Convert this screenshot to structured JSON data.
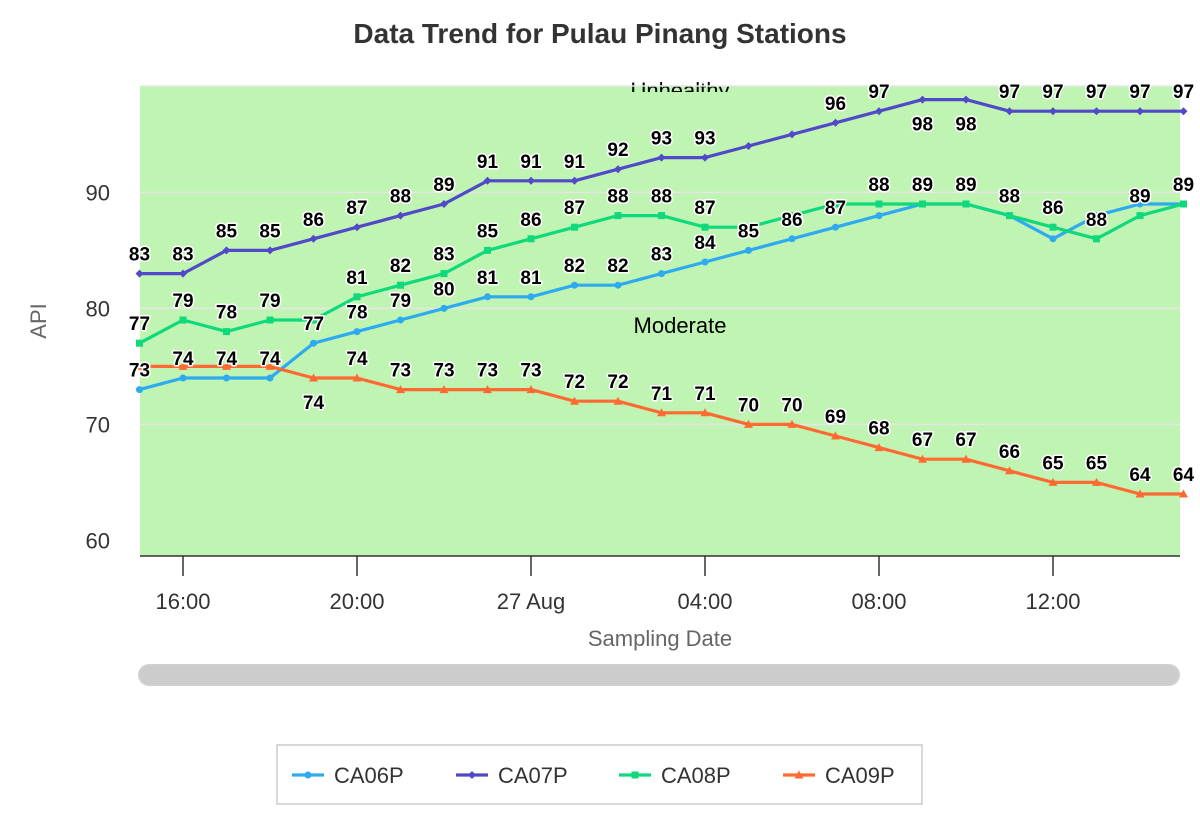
{
  "chart_data": {
    "type": "line",
    "title": "Data Trend for Pulau Pinang Stations",
    "xlabel": "Sampling Date",
    "ylabel": "API",
    "x_tick_labels": [
      "16:00",
      "20:00",
      "27 Aug",
      "04:00",
      "08:00",
      "12:00"
    ],
    "y_ticks": [
      60,
      70,
      80,
      90
    ],
    "ylim": [
      58.9,
      99.2
    ],
    "bands": [
      {
        "label": "Unhealthy",
        "color": "#bff4b3"
      },
      {
        "label": "Moderate",
        "color": "#bff4b3"
      }
    ],
    "x_hours": [
      15,
      16,
      17,
      18,
      19,
      20,
      21,
      22,
      23,
      24,
      25,
      26,
      27,
      28,
      29,
      30,
      31,
      32,
      33,
      34,
      35,
      36,
      37,
      38,
      39
    ],
    "series": [
      {
        "name": "CA06P",
        "color": "#2eaaf0",
        "marker": "circle",
        "values": [
          73,
          74,
          74,
          74,
          77,
          78,
          79,
          80,
          81,
          81,
          82,
          82,
          83,
          84,
          85,
          86,
          87,
          88,
          89,
          89,
          88,
          86,
          88,
          89,
          89
        ]
      },
      {
        "name": "CA07P",
        "color": "#5149c7",
        "marker": "diamond",
        "values": [
          83,
          83,
          85,
          85,
          86,
          87,
          88,
          89,
          91,
          91,
          91,
          92,
          93,
          93,
          94,
          95,
          96,
          97,
          98,
          98,
          97,
          97,
          97,
          97,
          97
        ]
      },
      {
        "name": "CA08P",
        "color": "#0fd97a",
        "marker": "square",
        "values": [
          77,
          79,
          78,
          79,
          79,
          81,
          82,
          83,
          85,
          86,
          87,
          88,
          88,
          87,
          87,
          88,
          89,
          89,
          89,
          89,
          88,
          87,
          86,
          88,
          89
        ]
      },
      {
        "name": "CA09P",
        "color": "#ff6a33",
        "marker": "triangle",
        "values": [
          75,
          75,
          75,
          75,
          74,
          74,
          73,
          73,
          73,
          73,
          72,
          72,
          71,
          71,
          70,
          70,
          69,
          68,
          67,
          67,
          66,
          65,
          65,
          64,
          64
        ]
      }
    ],
    "data_labels": [
      {
        "series": "CA07P",
        "text": "83",
        "i": 0,
        "pos": "above"
      },
      {
        "series": "CA07P",
        "text": "83",
        "i": 1,
        "pos": "above"
      },
      {
        "series": "CA07P",
        "text": "85",
        "i": 2,
        "pos": "above"
      },
      {
        "series": "CA07P",
        "text": "85",
        "i": 3,
        "pos": "above"
      },
      {
        "series": "CA07P",
        "text": "86",
        "i": 4,
        "pos": "above"
      },
      {
        "series": "CA07P",
        "text": "87",
        "i": 5,
        "pos": "above"
      },
      {
        "series": "CA07P",
        "text": "88",
        "i": 6,
        "pos": "above"
      },
      {
        "series": "CA07P",
        "text": "89",
        "i": 7,
        "pos": "above"
      },
      {
        "series": "CA07P",
        "text": "91",
        "i": 8,
        "pos": "above"
      },
      {
        "series": "CA07P",
        "text": "91",
        "i": 9,
        "pos": "above"
      },
      {
        "series": "CA07P",
        "text": "91",
        "i": 10,
        "pos": "above"
      },
      {
        "series": "CA07P",
        "text": "92",
        "i": 11,
        "pos": "above"
      },
      {
        "series": "CA07P",
        "text": "93",
        "i": 12,
        "pos": "above"
      },
      {
        "series": "CA07P",
        "text": "93",
        "i": 13,
        "pos": "above"
      },
      {
        "series": "CA07P",
        "text": "96",
        "i": 16,
        "pos": "above"
      },
      {
        "series": "CA07P",
        "text": "97",
        "i": 17,
        "pos": "above"
      },
      {
        "series": "CA07P",
        "text": "98",
        "i": 18,
        "pos": "below"
      },
      {
        "series": "CA07P",
        "text": "98",
        "i": 19,
        "pos": "below"
      },
      {
        "series": "CA07P",
        "text": "97",
        "i": 20,
        "pos": "above"
      },
      {
        "series": "CA07P",
        "text": "97",
        "i": 21,
        "pos": "above"
      },
      {
        "series": "CA07P",
        "text": "97",
        "i": 22,
        "pos": "above"
      },
      {
        "series": "CA07P",
        "text": "97",
        "i": 23,
        "pos": "above"
      },
      {
        "series": "CA07P",
        "text": "97",
        "i": 24,
        "pos": "above"
      },
      {
        "series": "CA08P",
        "text": "77",
        "i": 0,
        "pos": "above"
      },
      {
        "series": "CA08P",
        "text": "79",
        "i": 1,
        "pos": "above"
      },
      {
        "series": "CA08P",
        "text": "78",
        "i": 2,
        "pos": "above"
      },
      {
        "series": "CA08P",
        "text": "79",
        "i": 3,
        "pos": "above"
      },
      {
        "series": "CA08P",
        "text": "81",
        "i": 5,
        "pos": "above"
      },
      {
        "series": "CA08P",
        "text": "82",
        "i": 6,
        "pos": "above"
      },
      {
        "series": "CA08P",
        "text": "83",
        "i": 7,
        "pos": "above"
      },
      {
        "series": "CA08P",
        "text": "85",
        "i": 8,
        "pos": "above"
      },
      {
        "series": "CA08P",
        "text": "86",
        "i": 9,
        "pos": "above"
      },
      {
        "series": "CA08P",
        "text": "87",
        "i": 10,
        "pos": "above"
      },
      {
        "series": "CA08P",
        "text": "88",
        "i": 11,
        "pos": "above"
      },
      {
        "series": "CA08P",
        "text": "88",
        "i": 12,
        "pos": "above"
      },
      {
        "series": "CA08P",
        "text": "87",
        "i": 13,
        "pos": "above"
      },
      {
        "series": "CA08P",
        "text": "88",
        "i": 17,
        "pos": "above"
      },
      {
        "series": "CA08P",
        "text": "89",
        "i": 18,
        "pos": "above"
      },
      {
        "series": "CA08P",
        "text": "89",
        "i": 19,
        "pos": "above"
      },
      {
        "series": "CA08P",
        "text": "88",
        "i": 20,
        "pos": "above"
      },
      {
        "series": "CA08P",
        "text": "86",
        "i": 21,
        "pos": "above"
      },
      {
        "series": "CA08P",
        "text": "88",
        "i": 22,
        "pos": "above"
      },
      {
        "series": "CA08P",
        "text": "89",
        "i": 23,
        "pos": "above"
      },
      {
        "series": "CA08P",
        "text": "89",
        "i": 24,
        "pos": "above"
      },
      {
        "series": "CA06P",
        "text": "73",
        "i": 0,
        "pos": "above"
      },
      {
        "series": "CA06P",
        "text": "74",
        "i": 1,
        "pos": "above"
      },
      {
        "series": "CA06P",
        "text": "74",
        "i": 2,
        "pos": "above"
      },
      {
        "series": "CA06P",
        "text": "74",
        "i": 3,
        "pos": "above"
      },
      {
        "series": "CA06P",
        "text": "77",
        "i": 4,
        "pos": "above"
      },
      {
        "series": "CA06P",
        "text": "78",
        "i": 5,
        "pos": "above"
      },
      {
        "series": "CA06P",
        "text": "79",
        "i": 6,
        "pos": "above"
      },
      {
        "series": "CA06P",
        "text": "80",
        "i": 7,
        "pos": "above"
      },
      {
        "series": "CA06P",
        "text": "81",
        "i": 8,
        "pos": "above"
      },
      {
        "series": "CA06P",
        "text": "81",
        "i": 9,
        "pos": "above"
      },
      {
        "series": "CA06P",
        "text": "82",
        "i": 10,
        "pos": "above"
      },
      {
        "series": "CA06P",
        "text": "82",
        "i": 11,
        "pos": "above"
      },
      {
        "series": "CA06P",
        "text": "83",
        "i": 12,
        "pos": "above"
      },
      {
        "series": "CA06P",
        "text": "84",
        "i": 13,
        "pos": "above"
      },
      {
        "series": "CA06P",
        "text": "85",
        "i": 14,
        "pos": "above"
      },
      {
        "series": "CA06P",
        "text": "86",
        "i": 15,
        "pos": "above"
      },
      {
        "series": "CA06P",
        "text": "87",
        "i": 16,
        "pos": "above"
      },
      {
        "series": "CA09P",
        "text": "74",
        "i": 4,
        "pos": "below"
      },
      {
        "series": "CA09P",
        "text": "74",
        "i": 5,
        "pos": "above"
      },
      {
        "series": "CA09P",
        "text": "73",
        "i": 6,
        "pos": "above"
      },
      {
        "series": "CA09P",
        "text": "73",
        "i": 7,
        "pos": "above"
      },
      {
        "series": "CA09P",
        "text": "73",
        "i": 8,
        "pos": "above"
      },
      {
        "series": "CA09P",
        "text": "73",
        "i": 9,
        "pos": "above"
      },
      {
        "series": "CA09P",
        "text": "72",
        "i": 10,
        "pos": "above"
      },
      {
        "series": "CA09P",
        "text": "72",
        "i": 11,
        "pos": "above"
      },
      {
        "series": "CA09P",
        "text": "71",
        "i": 12,
        "pos": "above"
      },
      {
        "series": "CA09P",
        "text": "71",
        "i": 13,
        "pos": "above"
      },
      {
        "series": "CA09P",
        "text": "70",
        "i": 14,
        "pos": "above"
      },
      {
        "series": "CA09P",
        "text": "70",
        "i": 15,
        "pos": "above"
      },
      {
        "series": "CA09P",
        "text": "69",
        "i": 16,
        "pos": "above"
      },
      {
        "series": "CA09P",
        "text": "68",
        "i": 17,
        "pos": "above"
      },
      {
        "series": "CA09P",
        "text": "67",
        "i": 18,
        "pos": "above"
      },
      {
        "series": "CA09P",
        "text": "67",
        "i": 19,
        "pos": "above"
      },
      {
        "series": "CA09P",
        "text": "66",
        "i": 20,
        "pos": "above"
      },
      {
        "series": "CA09P",
        "text": "65",
        "i": 21,
        "pos": "above"
      },
      {
        "series": "CA09P",
        "text": "65",
        "i": 22,
        "pos": "above"
      },
      {
        "series": "CA09P",
        "text": "64",
        "i": 23,
        "pos": "above"
      },
      {
        "series": "CA09P",
        "text": "64",
        "i": 24,
        "pos": "above"
      }
    ],
    "grid": true,
    "legend_position": "bottom-center",
    "scrollbar": true
  }
}
